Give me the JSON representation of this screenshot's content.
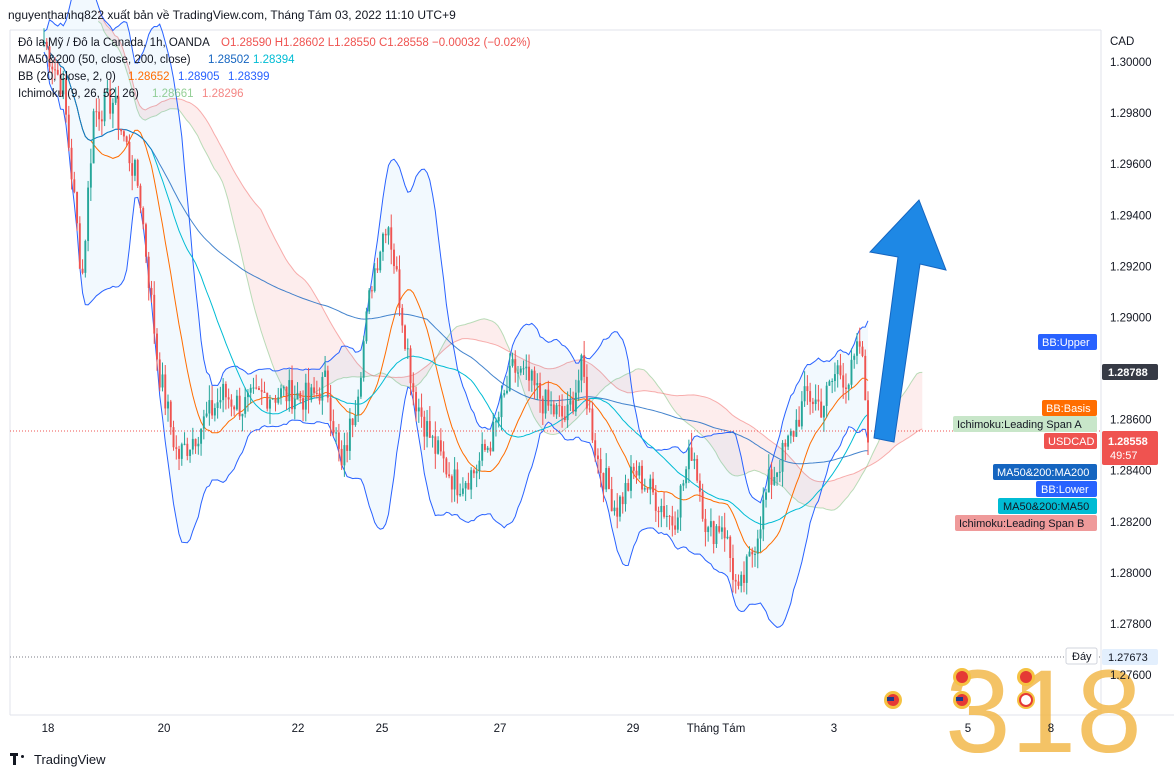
{
  "header": {
    "publish_text": "nguyenthanhq822 xuất bản về TradingView.com, Tháng Tám 03, 2022 11:10 UTC+9"
  },
  "legend": {
    "symbol": "Đô la Mỹ / Đô la Canada, 1h, OANDA",
    "ohlc": "O1.28590 H1.28602 L1.28550 C1.28558 −0.00032 (−0.02%)",
    "ma_name": "MA50&200 (50, close, 200, close)",
    "ma_v1": "1.28502",
    "ma_v2": "1.28394",
    "bb_name": "BB (20, close, 2, 0)",
    "bb_v1": "1.28652",
    "bb_v2": "1.28905",
    "bb_v3": "1.28399",
    "ichi_name": "Ichimoku (9, 26, 52, 26)",
    "ichi_v1": "1.28661",
    "ichi_v2": "1.28296"
  },
  "axis": {
    "currency": "CAD",
    "y_ticks": [
      "1.30000",
      "1.29800",
      "1.29600",
      "1.29400",
      "1.29200",
      "1.29000",
      "1.28600",
      "1.28400",
      "1.28200",
      "1.28000",
      "1.27800",
      "1.27600"
    ],
    "x_ticks": [
      "18",
      "20",
      "22",
      "25",
      "27",
      "29",
      "Tháng Tám",
      "3",
      "5",
      "8"
    ]
  },
  "price_tags": {
    "bb_upper": "BB:Upper",
    "last_close_value": "1.28788",
    "bb_basis": "BB:Basis",
    "ichi_span_a": "Ichimoku:Leading Span A",
    "symbol_tag": "USDCAD",
    "price_value": "1.28558",
    "countdown": "49:57",
    "ma200": "MA50&200:MA200",
    "bb_lower": "BB:Lower",
    "ma50": "MA50&200:MA50",
    "ichi_span_b": "Ichimoku:Leading Span B",
    "bottom_label": "Đáy",
    "bottom_value": "1.27673"
  },
  "colors": {
    "up": "#26a69a",
    "down": "#ef5350",
    "bb": "#2962ff",
    "basis": "#ff6d00",
    "ma200": "#1565c0",
    "ma50": "#00bcd4",
    "arrow": "#1e88e5"
  },
  "watermark": "318",
  "footer": {
    "brand": "TradingView"
  },
  "chart_data": {
    "type": "line",
    "title": "Đô la Mỹ / Đô la Canada, 1h, OANDA",
    "x": [
      "18",
      "20",
      "22",
      "25",
      "27",
      "29",
      "Tháng Tám",
      "3",
      "5",
      "8"
    ],
    "ylim": [
      1.2755,
      1.3015
    ],
    "series": [
      {
        "name": "Close",
        "points": [
          [
            0,
            1.3008
          ],
          [
            0.5,
            1.299
          ],
          [
            1.0,
            1.2915
          ],
          [
            1.3,
            1.298
          ],
          [
            1.8,
            1.2985
          ],
          [
            2.5,
            1.295
          ],
          [
            3.0,
            1.288
          ],
          [
            3.5,
            1.2845
          ],
          [
            4.0,
            1.2855
          ],
          [
            4.7,
            1.287
          ],
          [
            5.2,
            1.2865
          ],
          [
            5.8,
            1.287
          ],
          [
            6.5,
            1.287
          ],
          [
            7.0,
            1.2868
          ],
          [
            7.4,
            1.2875
          ],
          [
            7.8,
            1.284
          ],
          [
            8.2,
            1.287
          ],
          [
            8.6,
            1.2915
          ],
          [
            9.0,
            1.294
          ],
          [
            9.3,
            1.291
          ],
          [
            9.7,
            1.287
          ],
          [
            10.2,
            1.285
          ],
          [
            10.8,
            1.2835
          ],
          [
            11.3,
            1.284
          ],
          [
            11.8,
            1.2855
          ],
          [
            12.3,
            1.288
          ],
          [
            12.7,
            1.2875
          ],
          [
            13.2,
            1.2865
          ],
          [
            13.7,
            1.286
          ],
          [
            14.1,
            1.288
          ],
          [
            14.5,
            1.2845
          ],
          [
            15.0,
            1.2825
          ],
          [
            15.5,
            1.284
          ],
          [
            16.0,
            1.283
          ],
          [
            16.5,
            1.282
          ],
          [
            17.0,
            1.285
          ],
          [
            17.4,
            1.2815
          ],
          [
            17.8,
            1.282
          ],
          [
            18.2,
            1.279
          ],
          [
            18.6,
            1.281
          ],
          [
            19.0,
            1.2835
          ],
          [
            19.5,
            1.285
          ],
          [
            20.0,
            1.287
          ],
          [
            20.4,
            1.2865
          ],
          [
            20.8,
            1.288
          ],
          [
            21.1,
            1.2875
          ],
          [
            21.4,
            1.289
          ],
          [
            21.6,
            1.2856
          ]
        ]
      },
      {
        "name": "BB:Upper",
        "value": 1.28905
      },
      {
        "name": "BB:Basis",
        "value": 1.28652
      },
      {
        "name": "BB:Lower",
        "value": 1.28399
      },
      {
        "name": "MA50&200:MA200",
        "value": 1.28502
      },
      {
        "name": "MA50&200:MA50",
        "value": 1.28394
      },
      {
        "name": "Ichimoku:Leading Span A",
        "value": 1.28661
      },
      {
        "name": "Ichimoku:Leading Span B",
        "value": 1.28296
      }
    ],
    "last_price": 1.28558,
    "low_marker": 1.27673,
    "grid": false
  }
}
